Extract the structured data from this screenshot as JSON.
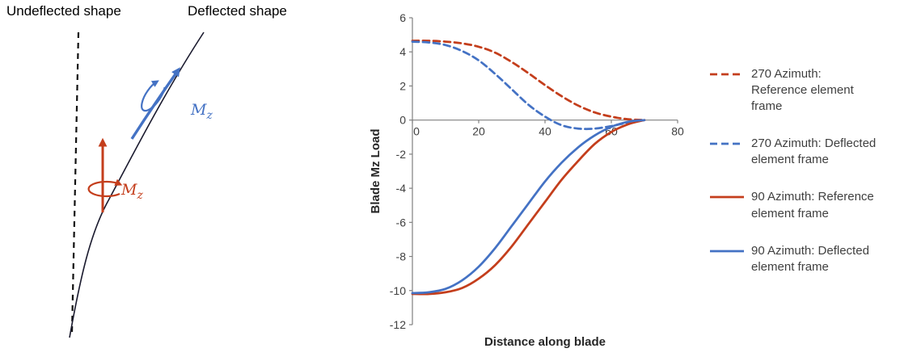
{
  "diagram": {
    "undeflected_label": "Undeflected shape",
    "deflected_label": "Deflected shape",
    "moment_blue": {
      "m": "M",
      "sub": "z"
    },
    "moment_red": {
      "m": "M",
      "sub": "z"
    },
    "colors": {
      "blue": "#4472C4",
      "red": "#C43E1C",
      "blade": "#1a1a2e"
    }
  },
  "chart_data": {
    "type": "line",
    "title": "",
    "xlabel": "Distance along blade",
    "ylabel": "Blade Mz Load",
    "xlim": [
      0,
      80
    ],
    "ylim": [
      -12,
      6
    ],
    "x_ticks": [
      0,
      20,
      40,
      60,
      80
    ],
    "y_ticks": [
      6,
      4,
      2,
      0,
      -2,
      -4,
      -6,
      -8,
      -10,
      -12
    ],
    "grid": false,
    "legend_position": "right",
    "x": [
      0,
      5,
      10,
      15,
      20,
      25,
      30,
      35,
      40,
      45,
      50,
      55,
      60,
      65,
      70
    ],
    "series": [
      {
        "name": "270 Azimuth: Reference element frame",
        "color": "#C43E1C",
        "dash": true,
        "values": [
          4.65,
          4.65,
          4.6,
          4.5,
          4.3,
          3.95,
          3.4,
          2.75,
          2.05,
          1.4,
          0.85,
          0.45,
          0.2,
          0.05,
          0
        ]
      },
      {
        "name": "270 Azimuth: Deflected element frame",
        "color": "#4472C4",
        "dash": true,
        "values": [
          4.6,
          4.55,
          4.4,
          4.05,
          3.5,
          2.7,
          1.8,
          0.9,
          0.2,
          -0.3,
          -0.5,
          -0.5,
          -0.35,
          -0.15,
          0
        ]
      },
      {
        "name": "90 Azimuth: Reference element frame",
        "color": "#C43E1C",
        "dash": false,
        "values": [
          -10.2,
          -10.2,
          -10.1,
          -9.85,
          -9.3,
          -8.5,
          -7.4,
          -6.1,
          -4.8,
          -3.5,
          -2.4,
          -1.4,
          -0.7,
          -0.25,
          0
        ]
      },
      {
        "name": "90 Azimuth: Deflected element frame",
        "color": "#4472C4",
        "dash": false,
        "values": [
          -10.15,
          -10.1,
          -9.9,
          -9.4,
          -8.6,
          -7.5,
          -6.2,
          -4.9,
          -3.6,
          -2.5,
          -1.6,
          -0.9,
          -0.4,
          -0.1,
          0
        ]
      }
    ]
  }
}
